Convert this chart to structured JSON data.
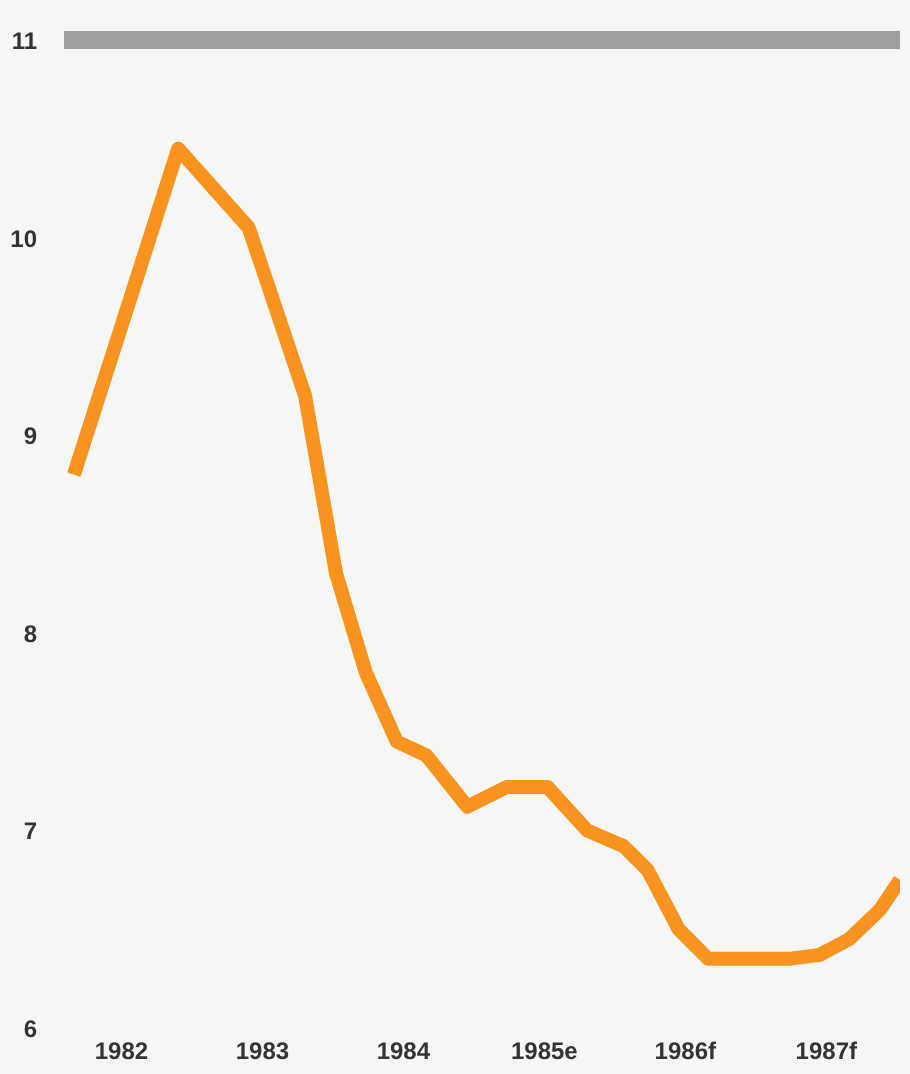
{
  "chart_data": {
    "type": "line",
    "x": [
      1981.67,
      1982.41,
      1982.91,
      1983.31,
      1983.53,
      1983.74,
      1983.96,
      1984.17,
      1984.46,
      1984.74,
      1985.03,
      1985.31,
      1985.57,
      1985.74,
      1985.96,
      1986.17,
      1986.46,
      1986.74,
      1986.96,
      1987.17,
      1987.39,
      1987.53
    ],
    "series": [
      {
        "color": "#f7931e",
        "values": [
          8.8,
          10.45,
          10.05,
          9.2,
          8.3,
          7.8,
          7.45,
          7.38,
          7.12,
          7.22,
          7.22,
          7.0,
          6.92,
          6.8,
          6.5,
          6.35,
          6.35,
          6.35,
          6.37,
          6.45,
          6.6,
          6.75
        ]
      }
    ],
    "xlim": [
      1981.6,
      1987.53
    ],
    "xticks": [
      {
        "value": 1982,
        "label": "1982"
      },
      {
        "value": 1983,
        "label": "1983"
      },
      {
        "value": 1984,
        "label": "1984"
      },
      {
        "value": 1985,
        "label": "1985e"
      },
      {
        "value": 1986,
        "label": "1986f"
      },
      {
        "value": 1987,
        "label": "1987f"
      }
    ],
    "ylim": [
      6,
      11
    ],
    "yticks": [
      6,
      7,
      8,
      9,
      10,
      11
    ],
    "ref_lines": [
      {
        "axis": "y",
        "value": 11,
        "color": "#a0a0a0"
      }
    ],
    "grid": false,
    "marker": "none",
    "line_style": "solid"
  }
}
